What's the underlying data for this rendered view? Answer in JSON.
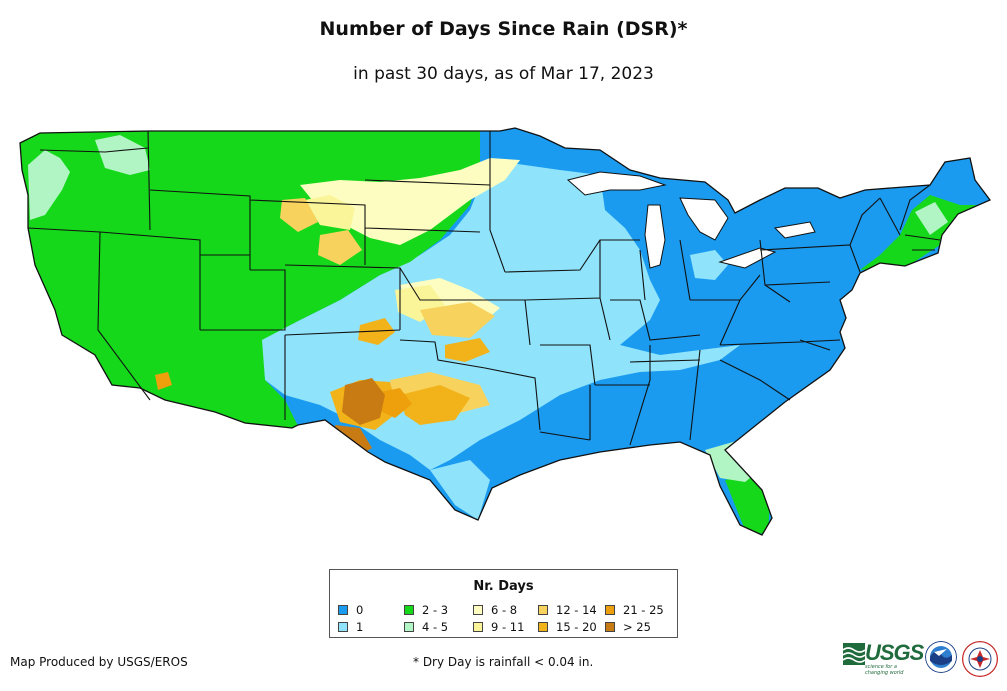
{
  "title": "Number of Days Since Rain (DSR)*",
  "subtitle": "in past 30 days, as of Mar 17, 2023",
  "legend": {
    "title": "Nr. Days",
    "items": [
      {
        "label": "0",
        "color": "#1a9bf0"
      },
      {
        "label": "1",
        "color": "#8fe3fb"
      },
      {
        "label": "2 - 3",
        "color": "#15d81b"
      },
      {
        "label": "4 - 5",
        "color": "#b2f5c4"
      },
      {
        "label": "6 - 8",
        "color": "#fdfdc1"
      },
      {
        "label": "9 - 11",
        "color": "#fbf59a"
      },
      {
        "label": "12 - 14",
        "color": "#f7d35e"
      },
      {
        "label": "15 - 20",
        "color": "#f2b21a"
      },
      {
        "label": "21 - 25",
        "color": "#ee9f0c"
      },
      {
        "label": "> 25",
        "color": "#c77b12"
      }
    ]
  },
  "credit": "Map Produced by USGS/EROS",
  "footnote": "* Dry Day is rainfall < 0.04 in.",
  "logos": [
    {
      "name": "USGS",
      "tagline": "science for a changing world"
    },
    {
      "name": "NOAA"
    },
    {
      "name": "National Weather Service"
    }
  ],
  "colors": {
    "water": "#ffffff",
    "border": "#111111"
  }
}
